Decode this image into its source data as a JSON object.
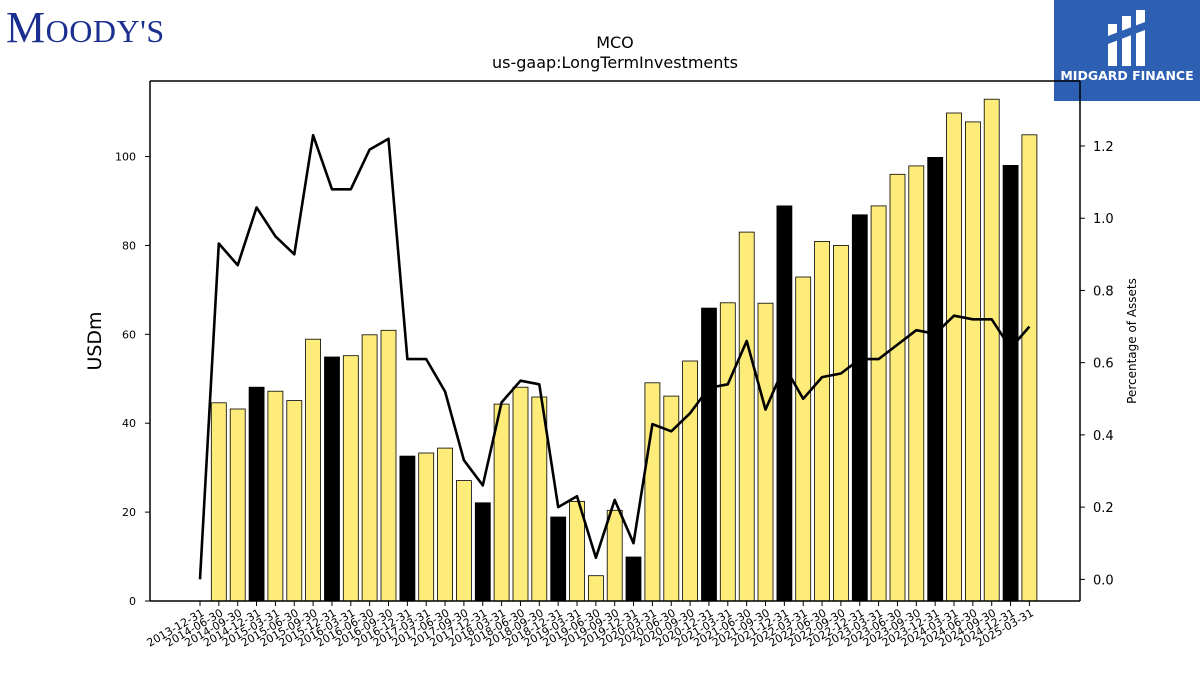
{
  "header": {
    "brand_left": "Moody's",
    "brand_right": "MIDGARD FINANCE"
  },
  "chart_data": {
    "type": "bar",
    "title": "MCO",
    "subtitle": "us-gaap:LongTermInvestments",
    "ylabel": "USDm",
    "y2label": "Percentage of Assets",
    "ylim": [
      0,
      117
    ],
    "y2lim": [
      -0.06,
      1.38
    ],
    "yticks": [
      0,
      20,
      40,
      60,
      80,
      100
    ],
    "y2ticks": [
      0.0,
      0.2,
      0.4,
      0.6,
      0.8,
      1.0,
      1.2
    ],
    "grid": false,
    "colors": {
      "bar": "#fdeb7a",
      "bar_q4": "#000000",
      "line": "#000000"
    },
    "categories": [
      "2013-12-31",
      "2014-06-30",
      "2014-09-30",
      "2014-12-31",
      "2015-03-31",
      "2015-06-30",
      "2015-09-30",
      "2015-12-31",
      "2016-03-31",
      "2016-06-30",
      "2016-09-30",
      "2016-12-31",
      "2017-03-31",
      "2017-06-30",
      "2017-09-30",
      "2017-12-31",
      "2018-03-31",
      "2018-06-30",
      "2018-09-30",
      "2018-12-31",
      "2019-03-31",
      "2019-06-30",
      "2019-09-30",
      "2019-12-31",
      "2020-03-31",
      "2020-06-30",
      "2020-09-30",
      "2020-12-31",
      "2021-03-31",
      "2021-06-30",
      "2021-09-30",
      "2021-12-31",
      "2022-03-31",
      "2022-06-30",
      "2022-09-30",
      "2022-12-31",
      "2023-03-31",
      "2023-06-30",
      "2023-09-30",
      "2023-12-31",
      "2024-03-31",
      "2024-06-30",
      "2024-09-30",
      "2024-12-31",
      "2025-03-31"
    ],
    "series": [
      {
        "kind": "bar",
        "values": [
          0,
          44.6,
          43.2,
          48.1,
          47.2,
          45.1,
          58.9,
          54.9,
          55.2,
          59.9,
          60.9,
          32.6,
          33.3,
          34.4,
          27.1,
          22.1,
          44.3,
          48.1,
          45.9,
          18.9,
          22.4,
          5.7,
          20.4,
          9.9,
          49.1,
          46.1,
          54.0,
          65.9,
          67.1,
          83.0,
          67.0,
          88.9,
          72.9,
          80.9,
          80.0,
          86.9,
          88.9,
          96.0,
          97.9,
          99.8,
          109.8,
          107.8,
          112.9,
          98.0,
          104.9
        ],
        "highlight": [
          false,
          false,
          false,
          true,
          false,
          false,
          false,
          true,
          false,
          false,
          false,
          true,
          false,
          false,
          false,
          true,
          false,
          false,
          false,
          true,
          false,
          false,
          false,
          true,
          false,
          false,
          false,
          true,
          false,
          false,
          false,
          true,
          false,
          false,
          false,
          true,
          false,
          false,
          false,
          true,
          false,
          false,
          false,
          true,
          false
        ]
      },
      {
        "kind": "line",
        "axis": "right",
        "values": [
          0.0,
          0.93,
          0.87,
          1.03,
          0.95,
          0.9,
          1.23,
          1.08,
          1.08,
          1.19,
          1.22,
          0.61,
          0.61,
          0.52,
          0.33,
          0.26,
          0.49,
          0.55,
          0.54,
          0.2,
          0.23,
          0.06,
          0.22,
          0.1,
          0.43,
          0.41,
          0.46,
          0.53,
          0.54,
          0.66,
          0.47,
          0.59,
          0.5,
          0.56,
          0.57,
          0.61,
          0.61,
          0.65,
          0.69,
          0.68,
          0.73,
          0.72,
          0.72,
          0.64,
          0.7
        ]
      }
    ]
  }
}
